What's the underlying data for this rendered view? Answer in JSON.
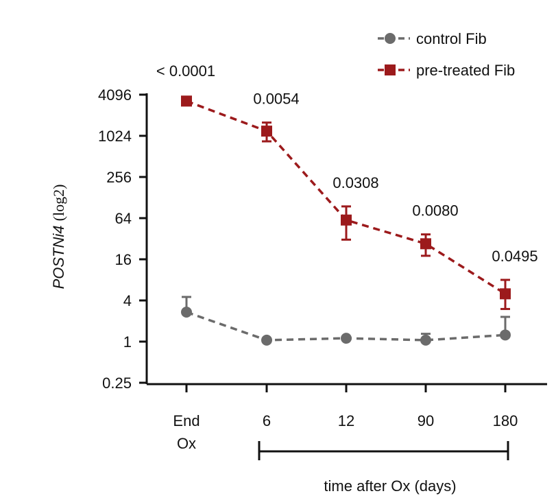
{
  "chart_data": {
    "type": "line",
    "ylabel_italic": "POSTNi4",
    "ylabel_suffix": "(log2)",
    "xlabel": "time after Ox (days)",
    "y_scale": "log2",
    "ylim": [
      0.25,
      4096
    ],
    "y_ticks": [
      {
        "value": 0.25,
        "label": "0.25"
      },
      {
        "value": 1,
        "label": "1"
      },
      {
        "value": 4,
        "label": "4"
      },
      {
        "value": 16,
        "label": "16"
      },
      {
        "value": 64,
        "label": "64"
      },
      {
        "value": 256,
        "label": "256"
      },
      {
        "value": 1024,
        "label": "1024"
      },
      {
        "value": 4096,
        "label": "4096"
      }
    ],
    "categories": [
      {
        "line1": "End",
        "line2": "Ox"
      },
      {
        "line1": "6",
        "line2": ""
      },
      {
        "line1": "12",
        "line2": ""
      },
      {
        "line1": "90",
        "line2": ""
      },
      {
        "line1": "180",
        "line2": ""
      }
    ],
    "series": [
      {
        "name": "control Fib",
        "color": "#6b6b6b",
        "marker": "circle",
        "values": [
          2.7,
          1.05,
          1.12,
          1.05,
          1.25
        ],
        "err_upper": [
          4.5,
          1.05,
          1.12,
          1.3,
          2.3
        ],
        "err_lower": [
          2.7,
          1.05,
          1.12,
          1.05,
          1.25
        ]
      },
      {
        "name": "pre-treated Fib",
        "color": "#9c1a1c",
        "marker": "square",
        "values": [
          3300,
          1200,
          60,
          27,
          5
        ],
        "err_upper": [
          3300,
          1600,
          95,
          37,
          8
        ],
        "err_lower": [
          3300,
          850,
          31,
          18,
          3
        ]
      }
    ],
    "p_values": [
      "< 0.0001",
      "0.0054",
      "0.0308",
      "0.0080",
      "0.0495"
    ],
    "legend_position": "top-right"
  }
}
